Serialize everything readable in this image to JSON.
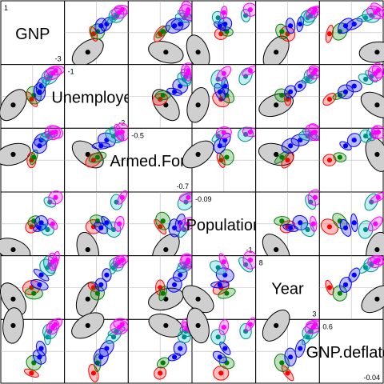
{
  "chart_data": {
    "type": "scatter",
    "title": "",
    "variables": [
      "GNP",
      "Unemployed",
      "Armed.Forces",
      "Population",
      "Year",
      "GNP.deflator"
    ],
    "diagonal_labels": [
      "GNP",
      "Unemployed",
      "Armed.Forces",
      "Population",
      "Year",
      "GNP.deflator"
    ],
    "diagonal_ranges": [
      {
        "max": "1",
        "min": "-3"
      },
      {
        "max": "-1",
        "min": "-2"
      },
      {
        "max": "-0.5",
        "min": "-0.7"
      },
      {
        "max": "-0.09",
        "min": "-1"
      },
      {
        "max": "8",
        "min": "3"
      },
      {
        "max": "0.6",
        "min": "-0.04"
      }
    ],
    "groups": [
      {
        "color": "#000000",
        "fill": "#cfcfcf"
      },
      {
        "color": "#ff0000",
        "fill": "#ff000040"
      },
      {
        "color": "#008000",
        "fill": "#00800040"
      },
      {
        "color": "#0000ff",
        "fill": "#0000ff40"
      },
      {
        "color": "#008b8b",
        "fill": "#00bfbf40"
      },
      {
        "color": "#ff00ff",
        "fill": "#ff00ff40"
      }
    ],
    "group_means": [
      [
        0.16,
        0.35,
        0.6,
        0.05,
        0.3,
        0.95
      ],
      [
        0.48,
        0.45,
        0.5,
        0.45,
        0.5,
        0.12
      ],
      [
        0.52,
        0.52,
        0.55,
        0.55,
        0.4,
        0.3
      ],
      [
        0.62,
        0.58,
        0.75,
        0.43,
        0.55,
        0.4
      ],
      [
        0.65,
        0.68,
        0.85,
        0.52,
        0.72,
        0.55
      ],
      [
        0.76,
        0.8,
        0.92,
        0.4,
        0.85,
        0.75
      ],
      [
        0.8,
        0.85,
        0.95,
        0.88,
        0.9,
        0.85
      ],
      [
        0.85,
        0.9,
        0.98,
        0.5,
        0.95,
        0.92
      ],
      [
        0.9,
        0.95,
        0.99,
        0.96,
        0.98,
        0.97
      ]
    ],
    "grid": false,
    "legend": "none"
  }
}
